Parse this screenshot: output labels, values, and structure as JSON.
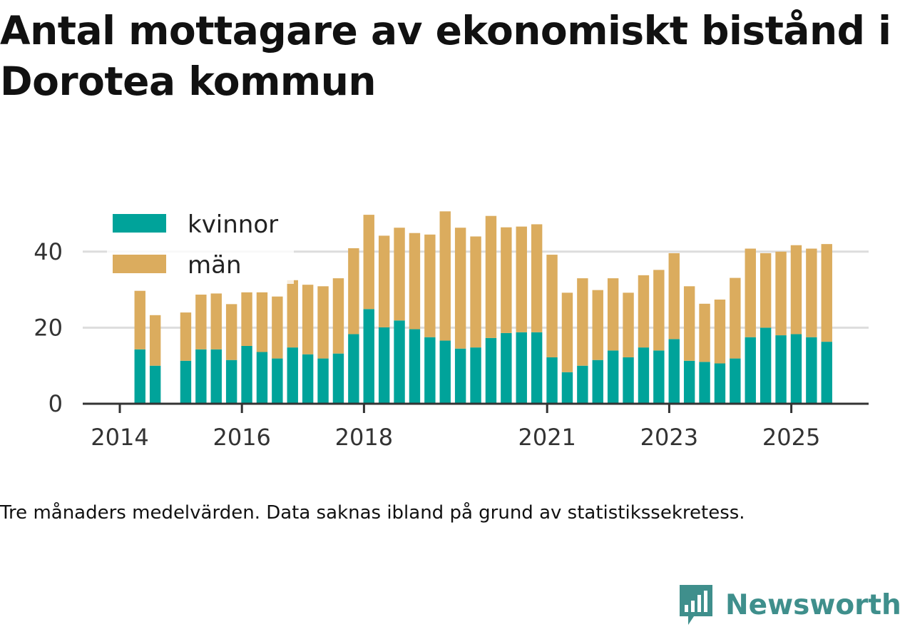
{
  "title": "Antal mottagare av ekonomiskt bistånd i Dorotea kommun",
  "note": "Tre månaders medelvärden. Data saknas ibland på grund av statistikssekretess.",
  "brand": {
    "name": "Newsworthy",
    "icon": "newsworthy-logo-icon",
    "color": "#3f8f8c"
  },
  "colors": {
    "kvinnor": "#00a39a",
    "man": "#dbac5e",
    "grid": "#dddddd",
    "axis": "#333333"
  },
  "chart_data": {
    "type": "bar",
    "stacked": true,
    "x_start": 2014.0,
    "x_end": 2026.0,
    "bar_width_years": 0.18,
    "ylim": [
      0,
      50
    ],
    "y_ticks": [
      0,
      20,
      40
    ],
    "x_ticks": [
      {
        "label": "2014",
        "value": 2014.0
      },
      {
        "label": "2016",
        "value": 2016.0
      },
      {
        "label": "2018",
        "value": 2018.0
      },
      {
        "label": "2021",
        "value": 2021.0
      },
      {
        "label": "2023",
        "value": 2023.0
      },
      {
        "label": "2025",
        "value": 2025.0
      }
    ],
    "legend": {
      "position": "top-left",
      "entries": [
        "kvinnor",
        "män"
      ]
    },
    "x": [
      2014.33,
      2014.58,
      2015.08,
      2015.33,
      2015.58,
      2015.83,
      2016.08,
      2016.33,
      2016.58,
      2016.83,
      2017.08,
      2017.33,
      2017.58,
      2017.83,
      2018.08,
      2018.33,
      2018.58,
      2018.83,
      2019.08,
      2019.33,
      2019.58,
      2019.83,
      2020.08,
      2020.33,
      2020.58,
      2020.83,
      2021.08,
      2021.33,
      2021.58,
      2021.83,
      2022.08,
      2022.33,
      2022.58,
      2022.83,
      2023.08,
      2023.33,
      2023.58,
      2023.83,
      2024.08,
      2024.33,
      2024.58,
      2024.83,
      2025.08,
      2025.33,
      2025.58
    ],
    "series": [
      {
        "name": "kvinnor",
        "values": [
          14.3,
          10.0,
          11.3,
          14.3,
          14.3,
          11.5,
          15.2,
          13.6,
          11.9,
          14.8,
          13.0,
          11.9,
          13.2,
          18.3,
          24.9,
          20.1,
          21.9,
          19.6,
          17.5,
          16.6,
          14.5,
          14.8,
          17.3,
          18.6,
          18.8,
          18.8,
          12.2,
          8.3,
          10.0,
          11.5,
          14.0,
          12.2,
          14.8,
          14.0,
          17.0,
          11.3,
          11.0,
          10.6,
          11.9,
          17.5,
          20.0,
          18.0,
          18.3,
          17.5,
          16.3
        ]
      },
      {
        "name": "män",
        "values": [
          15.4,
          13.3,
          12.7,
          14.4,
          14.7,
          14.7,
          14.1,
          15.7,
          16.3,
          17.7,
          18.3,
          19.0,
          19.8,
          22.6,
          24.8,
          24.1,
          24.4,
          25.3,
          27.0,
          34.0,
          31.8,
          29.2,
          32.1,
          27.8,
          27.8,
          28.4,
          27.0,
          20.9,
          23.0,
          18.4,
          19.0,
          17.0,
          19.0,
          21.2,
          22.6,
          19.6,
          15.3,
          16.8,
          21.2,
          23.3,
          19.6,
          22.0,
          23.4,
          23.3,
          25.7
        ]
      }
    ]
  }
}
